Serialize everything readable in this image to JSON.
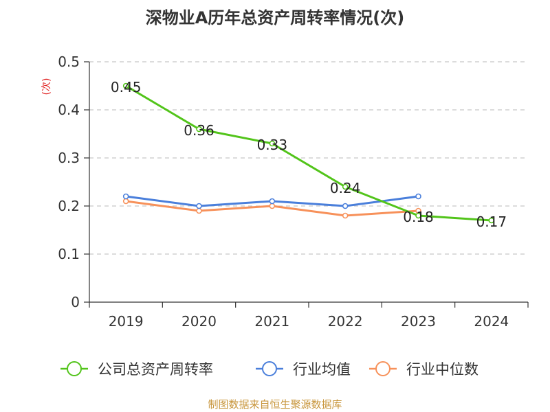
{
  "chart_data": {
    "type": "line",
    "title": "深物业A历年总资产周转率情况(次)",
    "ylabel": "(次)",
    "xlabel": "",
    "categories": [
      "2019",
      "2020",
      "2021",
      "2022",
      "2023",
      "2024"
    ],
    "ylim": [
      0,
      0.5
    ],
    "yticks": [
      "0",
      "0.1",
      "0.2",
      "0.3",
      "0.4",
      "0.5"
    ],
    "grid": true,
    "legend_position": "bottom",
    "series": [
      {
        "name": "公司总资产周转率",
        "color": "#52c41a",
        "values": [
          0.45,
          0.36,
          0.33,
          0.24,
          0.18,
          0.17
        ],
        "labels": [
          "0.45",
          "0.36",
          "0.33",
          "0.24",
          "0.18",
          "0.17"
        ]
      },
      {
        "name": "行业均值",
        "color": "#4a7fdb",
        "values": [
          0.22,
          0.2,
          0.21,
          0.2,
          0.22,
          null
        ]
      },
      {
        "name": "行业中位数",
        "color": "#f7915a",
        "values": [
          0.21,
          0.19,
          0.2,
          0.18,
          0.19,
          null
        ]
      }
    ]
  },
  "source": "制图数据来自恒生聚源数据库"
}
